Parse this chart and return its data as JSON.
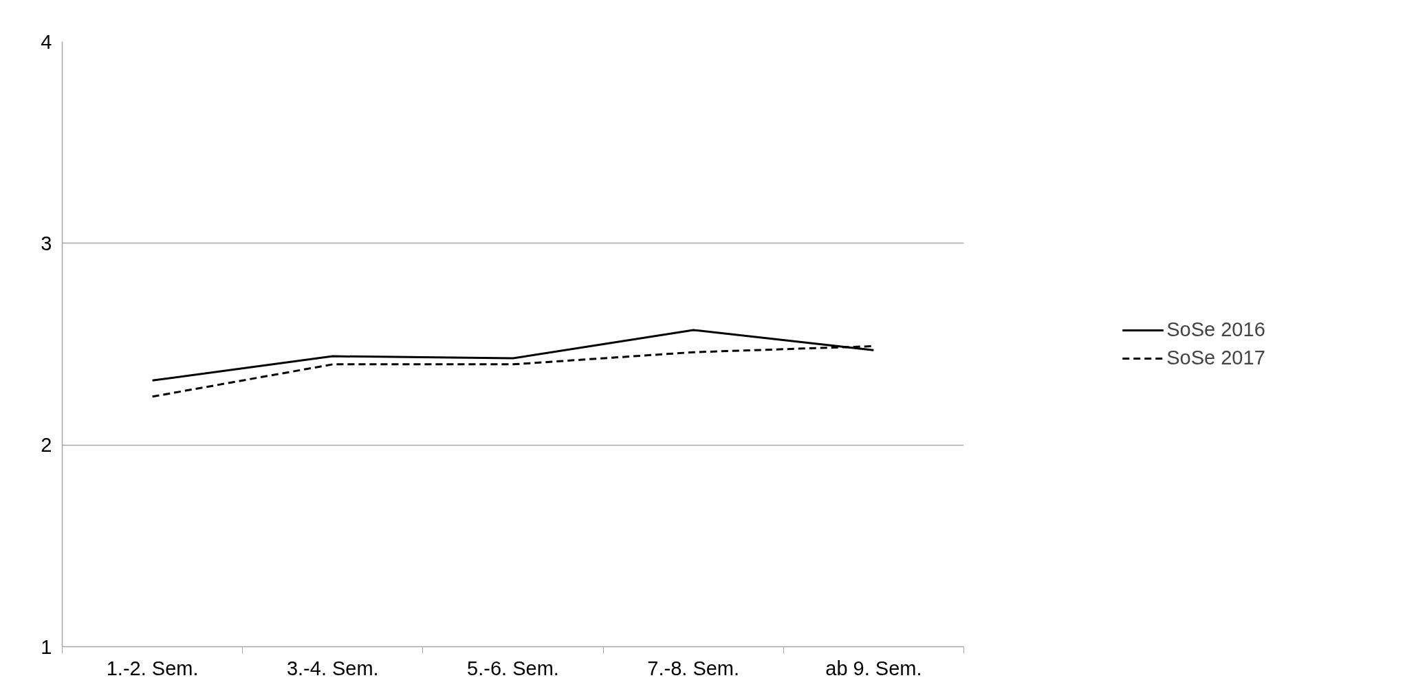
{
  "chart_data": {
    "type": "line",
    "categories": [
      "1.-2. Sem.",
      "3.-4. Sem.",
      "5.-6. Sem.",
      "7.-8. Sem.",
      "ab 9. Sem."
    ],
    "series": [
      {
        "name": "SoSe 2016",
        "color": "#000000",
        "line_style": "solid",
        "values": [
          2.32,
          2.44,
          2.43,
          2.57,
          2.47
        ]
      },
      {
        "name": "SoSe 2017",
        "color": "#000000",
        "line_style": "dashed",
        "values": [
          2.24,
          2.4,
          2.4,
          2.46,
          2.49
        ]
      }
    ],
    "ylim": [
      1,
      4
    ],
    "yticks": [
      1,
      2,
      3,
      4
    ],
    "grid": "y",
    "legend": "right",
    "marker": "none"
  }
}
